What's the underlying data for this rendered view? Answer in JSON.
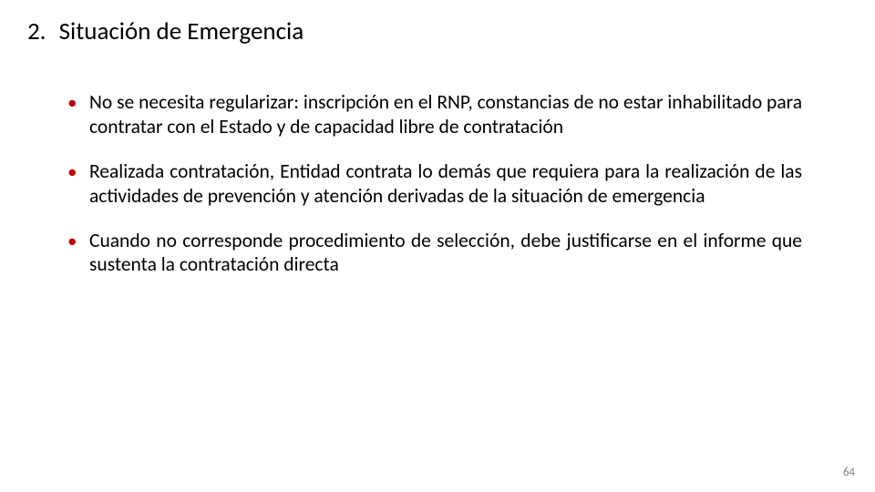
{
  "slide": {
    "heading_number": "2.",
    "heading_text": "Situación de Emergencia",
    "bullets": [
      "No se necesita regularizar: inscripción en el RNP,  constancias de no estar inhabilitado para contratar con el Estado y de capacidad libre de contratación",
      "Realizada contratación, Entidad contrata lo demás que requiera para la realización de las actividades de prevención y atención derivadas de la situación de emergencia",
      "Cuando no corresponde procedimiento de selección, debe justificarse en el informe que sustenta la contratación directa"
    ],
    "page_number": "64"
  },
  "style": {
    "background_color": "#ffffff",
    "heading_color": "#000000",
    "heading_fontsize": 27,
    "bullet_color": "#c00000",
    "body_color": "#000000",
    "body_fontsize": 21.5,
    "page_number_color": "#808080",
    "page_number_fontsize": 13,
    "font_family": "Calibri"
  }
}
